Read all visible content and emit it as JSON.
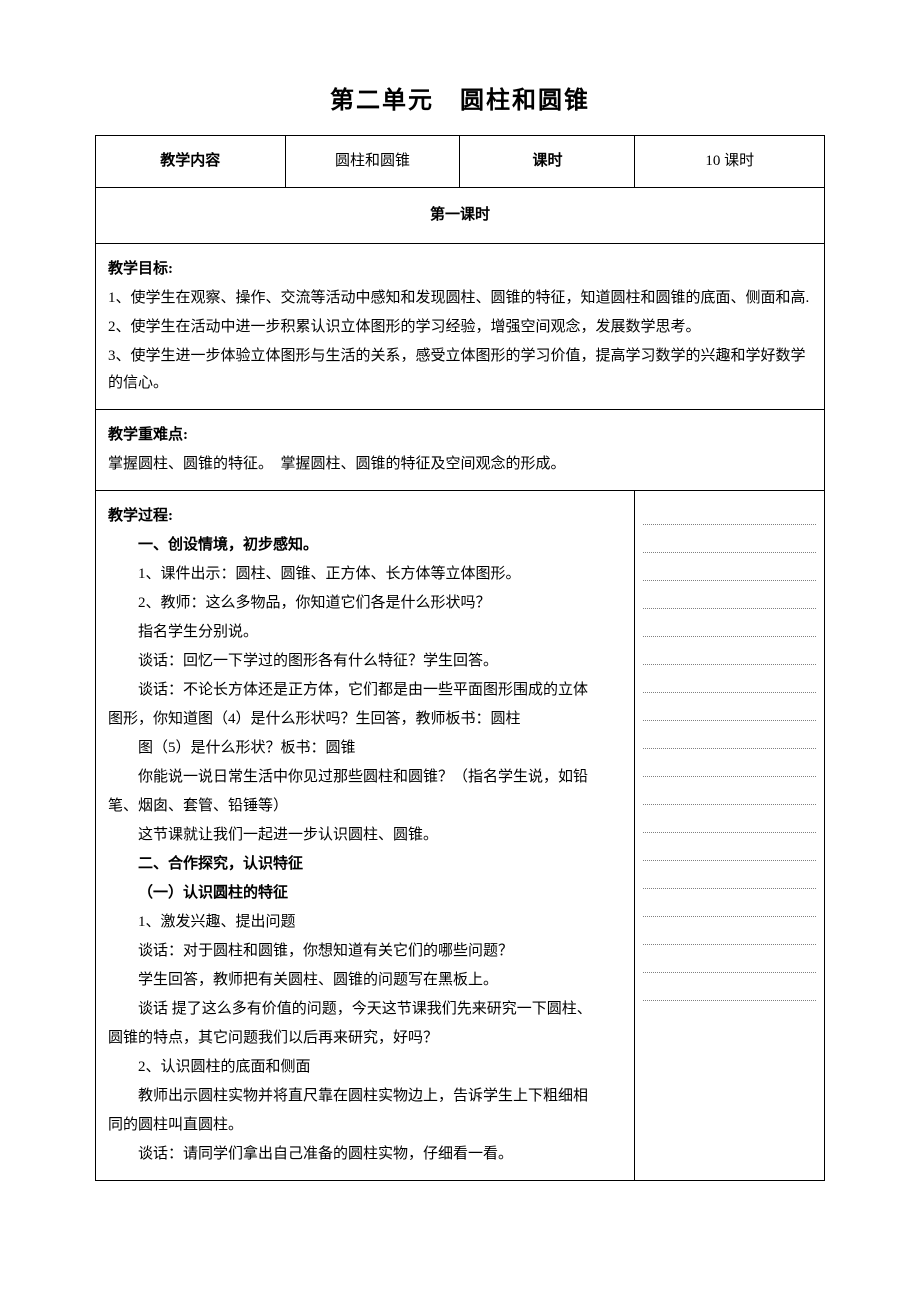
{
  "page": {
    "title": "第二单元　圆柱和圆锥",
    "background_color": "#ffffff",
    "border_color": "#000000",
    "dotted_color": "#808080",
    "font_family": "SimSun",
    "title_fontsize": 24,
    "body_fontsize": 15
  },
  "header": {
    "col1_label": "教学内容",
    "col2_value": "圆柱和圆锥",
    "col3_label": "课时",
    "col4_value": "10 课时"
  },
  "lesson": {
    "title": "第一课时"
  },
  "objectives": {
    "label": "教学目标:",
    "items": [
      "1、使学生在观察、操作、交流等活动中感知和发现圆柱、圆锥的特征，知道圆柱和圆锥的底面、侧面和高.",
      "2、使学生在活动中进一步积累认识立体图形的学习经验，增强空间观念，发展数学思考。",
      "3、使学生进一步体验立体图形与生活的关系，感受立体图形的学习价值，提高学习数学的兴趣和学好数学的信心。"
    ]
  },
  "difficulties": {
    "label": "教学重难点:",
    "text": "掌握圆柱、圆锥的特征。　掌握圆柱、圆锥的特征及空间观念的形成。"
  },
  "process": {
    "label": "教学过程:",
    "lines": [
      {
        "text": "一、创设情境，初步感知。",
        "bold": true,
        "indent": 1
      },
      {
        "text": "1、课件出示：圆柱、圆锥、正方体、长方体等立体图形。",
        "bold": false,
        "indent": 1
      },
      {
        "text": "2、教师：这么多物品，你知道它们各是什么形状吗？",
        "bold": false,
        "indent": 1
      },
      {
        "text": "指名学生分别说。",
        "bold": false,
        "indent": 1
      },
      {
        "text": "谈话：回忆一下学过的图形各有什么特征？学生回答。",
        "bold": false,
        "indent": 1
      },
      {
        "text": "谈话：不论长方体还是正方体，它们都是由一些平面图形围成的立体",
        "bold": false,
        "indent": 1
      },
      {
        "text": "图形，你知道图（4）是什么形状吗？生回答，教师板书：圆柱",
        "bold": false,
        "indent": 0
      },
      {
        "text": "图（5）是什么形状？板书：圆锥",
        "bold": false,
        "indent": 1
      },
      {
        "text": "你能说一说日常生活中你见过那些圆柱和圆锥？（指名学生说，如铅",
        "bold": false,
        "indent": 1
      },
      {
        "text": "笔、烟囱、套管、铅锤等）",
        "bold": false,
        "indent": 0
      },
      {
        "text": "这节课就让我们一起进一步认识圆柱、圆锥。",
        "bold": false,
        "indent": 1
      },
      {
        "text": "二、合作探究，认识特征",
        "bold": true,
        "indent": 1
      },
      {
        "text": "（一）认识圆柱的特征",
        "bold": true,
        "indent": 1
      },
      {
        "text": "1、激发兴趣、提出问题",
        "bold": false,
        "indent": 1
      },
      {
        "text": "谈话：对于圆柱和圆锥，你想知道有关它们的哪些问题？",
        "bold": false,
        "indent": 1
      },
      {
        "text": "学生回答，教师把有关圆柱、圆锥的问题写在黑板上。",
        "bold": false,
        "indent": 1
      },
      {
        "text": "谈话 提了这么多有价值的问题，今天这节课我们先来研究一下圆柱、",
        "bold": false,
        "indent": 1
      },
      {
        "text": "圆锥的特点，其它问题我们以后再来研究，好吗？",
        "bold": false,
        "indent": 0
      },
      {
        "text": "2、认识圆柱的底面和侧面",
        "bold": false,
        "indent": 1
      },
      {
        "text": "教师出示圆柱实物并将直尺靠在圆柱实物边上，告诉学生上下粗细相",
        "bold": false,
        "indent": 1
      },
      {
        "text": "同的圆柱叫直圆柱。",
        "bold": false,
        "indent": 0
      },
      {
        "text": "谈话：请同学们拿出自己准备的圆柱实物，仔细看一看。",
        "bold": false,
        "indent": 1
      }
    ]
  },
  "notes": {
    "line_count": 18
  }
}
